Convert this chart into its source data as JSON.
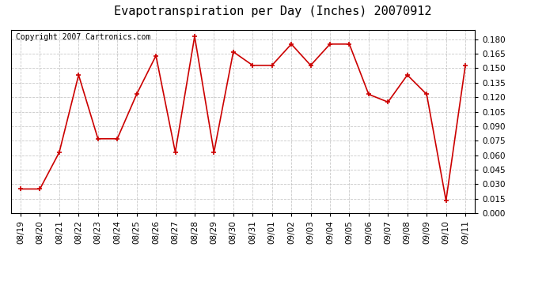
{
  "title": "Evapotranspiration per Day (Inches) 20070912",
  "copyright": "Copyright 2007 Cartronics.com",
  "dates": [
    "08/19",
    "08/20",
    "08/21",
    "08/22",
    "08/23",
    "08/24",
    "08/25",
    "08/26",
    "08/27",
    "08/28",
    "08/29",
    "08/30",
    "08/31",
    "09/01",
    "09/02",
    "09/03",
    "09/04",
    "09/05",
    "09/06",
    "09/07",
    "09/08",
    "09/09",
    "09/10",
    "09/11"
  ],
  "values": [
    0.025,
    0.025,
    0.063,
    0.143,
    0.077,
    0.077,
    0.123,
    0.163,
    0.063,
    0.183,
    0.063,
    0.167,
    0.153,
    0.153,
    0.175,
    0.153,
    0.175,
    0.175,
    0.123,
    0.115,
    0.143,
    0.123,
    0.013,
    0.153
  ],
  "line_color": "#cc0000",
  "marker": "+",
  "marker_size": 5,
  "marker_color": "#cc0000",
  "background_color": "#ffffff",
  "plot_bg_color": "#ffffff",
  "grid_color": "#bbbbbb",
  "ylim": [
    0.0,
    0.19
  ],
  "ytick_step": 0.015,
  "title_fontsize": 11,
  "copyright_fontsize": 7,
  "tick_fontsize": 7.5
}
